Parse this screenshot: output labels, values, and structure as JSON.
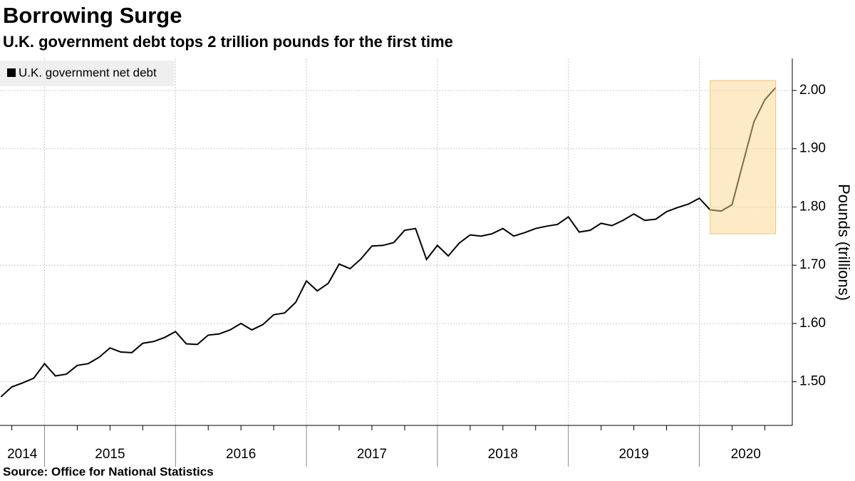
{
  "chart_data": {
    "type": "line",
    "title": "Borrowing Surge",
    "subtitle": "U.K. government debt tops 2 trillion pounds for the first time",
    "source": "Source: Office for National Statistics",
    "y_axis_label": "Pounds (trillions)",
    "x": [
      2014.667,
      2014.75,
      2014.833,
      2014.917,
      2015,
      2015.083,
      2015.167,
      2015.25,
      2015.333,
      2015.417,
      2015.5,
      2015.583,
      2015.667,
      2015.75,
      2015.833,
      2015.917,
      2016,
      2016.083,
      2016.167,
      2016.25,
      2016.333,
      2016.417,
      2016.5,
      2016.583,
      2016.667,
      2016.75,
      2016.833,
      2016.917,
      2017,
      2017.083,
      2017.167,
      2017.25,
      2017.333,
      2017.417,
      2017.5,
      2017.583,
      2017.667,
      2017.75,
      2017.833,
      2017.917,
      2018,
      2018.083,
      2018.167,
      2018.25,
      2018.333,
      2018.417,
      2018.5,
      2018.583,
      2018.667,
      2018.75,
      2018.833,
      2018.917,
      2019,
      2019.083,
      2019.167,
      2019.25,
      2019.333,
      2019.417,
      2019.5,
      2019.583,
      2019.667,
      2019.75,
      2019.833,
      2019.917,
      2020,
      2020.083,
      2020.167,
      2020.25,
      2020.333,
      2020.417,
      2020.5,
      2020.583
    ],
    "series": [
      {
        "name": "U.K. government net debt",
        "color": "#000000",
        "values": [
          1.474,
          1.491,
          1.498,
          1.506,
          1.531,
          1.51,
          1.513,
          1.528,
          1.531,
          1.542,
          1.558,
          1.551,
          1.55,
          1.566,
          1.569,
          1.576,
          1.586,
          1.565,
          1.564,
          1.58,
          1.582,
          1.589,
          1.6,
          1.589,
          1.598,
          1.615,
          1.618,
          1.636,
          1.673,
          1.656,
          1.669,
          1.702,
          1.694,
          1.711,
          1.733,
          1.734,
          1.739,
          1.76,
          1.763,
          1.71,
          1.734,
          1.716,
          1.738,
          1.752,
          1.75,
          1.754,
          1.763,
          1.75,
          1.756,
          1.763,
          1.767,
          1.77,
          1.783,
          1.757,
          1.76,
          1.772,
          1.768,
          1.777,
          1.788,
          1.777,
          1.779,
          1.792,
          1.799,
          1.805,
          1.815,
          1.795,
          1.793,
          1.804,
          1.875,
          1.946,
          1.984,
          2.005
        ]
      }
    ],
    "xlim": [
      2014.66,
      2020.71
    ],
    "xticks": [
      2015,
      2016,
      2017,
      2018,
      2019,
      2020
    ],
    "year_labels": [
      "2014",
      "2015",
      "2016",
      "2017",
      "2018",
      "2019",
      "2020"
    ],
    "ylim": [
      1.425,
      2.055
    ],
    "yticks": [
      {
        "value": 1.5,
        "label": "1.50"
      },
      {
        "value": 1.6,
        "label": "1.60"
      },
      {
        "value": 1.7,
        "label": "1.70"
      },
      {
        "value": 1.8,
        "label": "1.80"
      },
      {
        "value": 1.9,
        "label": "1.90"
      },
      {
        "value": 2.0,
        "label": "2.00"
      }
    ],
    "highlight": {
      "x": [
        2020.083,
        2020.583
      ],
      "y": [
        1.754,
        2.017
      ],
      "color": "#fcd690"
    },
    "grid": true,
    "legend": "top-left"
  }
}
